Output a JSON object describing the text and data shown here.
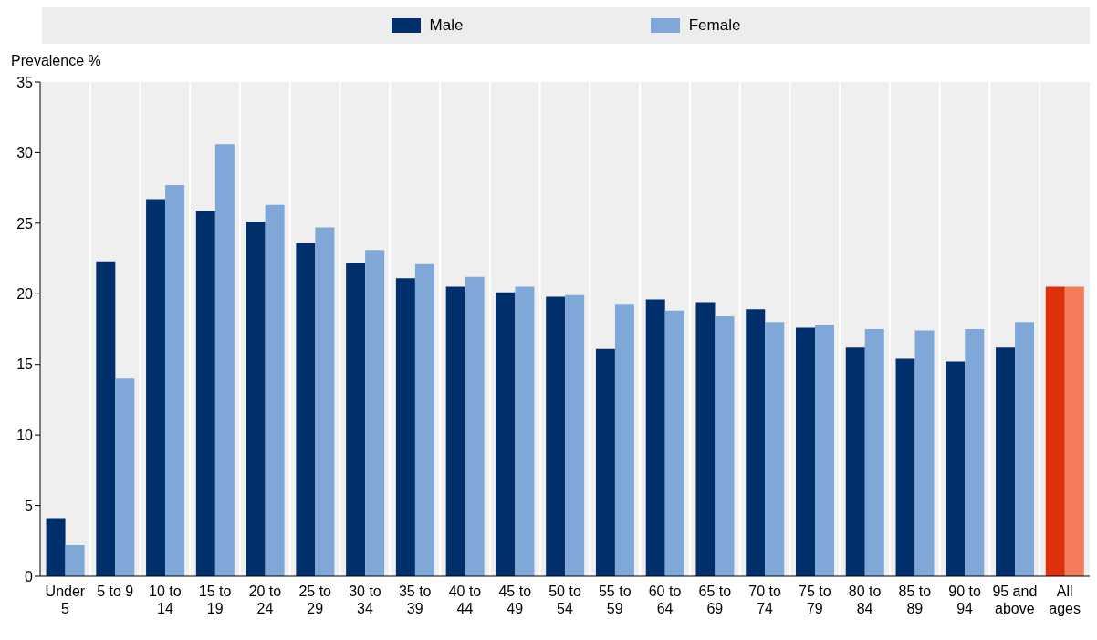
{
  "chart_data": {
    "type": "bar",
    "ylabel": "Prevalence %",
    "categories": [
      "Under 5",
      "5 to 9",
      "10 to 14",
      "15 to 19",
      "20 to 24",
      "25 to 29",
      "30 to 34",
      "35 to 39",
      "40 to 44",
      "45 to 49",
      "50 to 54",
      "55 to 59",
      "60 to 64",
      "65 to 69",
      "70 to 74",
      "75 to 79",
      "80 to 84",
      "85 to 89",
      "90 to 94",
      "95 and above",
      "All ages"
    ],
    "series": [
      {
        "name": "Male",
        "color": "#002f6c",
        "colors": [
          "#002f6c",
          "#002f6c",
          "#002f6c",
          "#002f6c",
          "#002f6c",
          "#002f6c",
          "#002f6c",
          "#002f6c",
          "#002f6c",
          "#002f6c",
          "#002f6c",
          "#002f6c",
          "#002f6c",
          "#002f6c",
          "#002f6c",
          "#002f6c",
          "#002f6c",
          "#002f6c",
          "#002f6c",
          "#002f6c",
          "#e0300a"
        ],
        "values": [
          4.1,
          22.3,
          26.7,
          25.9,
          25.1,
          23.6,
          22.2,
          21.1,
          20.5,
          20.1,
          19.8,
          16.1,
          19.6,
          19.4,
          18.9,
          17.6,
          16.2,
          15.4,
          15.2,
          16.2,
          20.5
        ]
      },
      {
        "name": "Female",
        "color": "#7fa8d9",
        "colors": [
          "#7fa8d9",
          "#7fa8d9",
          "#7fa8d9",
          "#7fa8d9",
          "#7fa8d9",
          "#7fa8d9",
          "#7fa8d9",
          "#7fa8d9",
          "#7fa8d9",
          "#7fa8d9",
          "#7fa8d9",
          "#7fa8d9",
          "#7fa8d9",
          "#7fa8d9",
          "#7fa8d9",
          "#7fa8d9",
          "#7fa8d9",
          "#7fa8d9",
          "#7fa8d9",
          "#7fa8d9",
          "#f47c5a"
        ],
        "values": [
          2.2,
          14.0,
          27.7,
          30.6,
          26.3,
          24.7,
          23.1,
          22.1,
          21.2,
          20.5,
          19.9,
          19.3,
          18.8,
          18.4,
          18.0,
          17.8,
          17.5,
          17.4,
          17.5,
          18.0,
          20.5
        ]
      }
    ],
    "ylim": [
      0,
      35
    ],
    "yticks": [
      0,
      5,
      10,
      15,
      20,
      25,
      30,
      35
    ],
    "grid": "x",
    "legend": "top"
  }
}
